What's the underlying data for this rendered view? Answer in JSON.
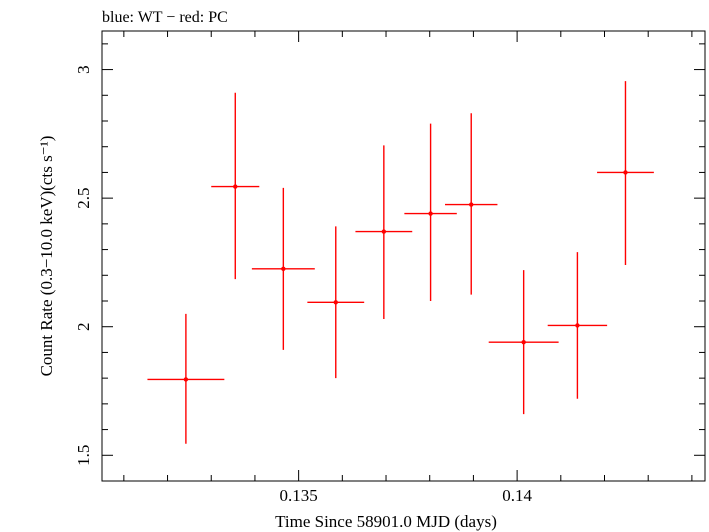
{
  "chart_data": {
    "type": "scatter",
    "title": "blue: WT − red: PC",
    "xlabel": "Time Since 58901.0 MJD (days)",
    "ylabel": "Count Rate (0.3−10.0 keV)(cts s⁻¹)",
    "xlim": [
      0.1305,
      0.1443
    ],
    "ylim": [
      1.4,
      3.15
    ],
    "x_ticks": [
      0.135,
      0.14
    ],
    "x_tick_labels": [
      "0.135",
      "0.14"
    ],
    "y_ticks": [
      1.5,
      2,
      2.5,
      3
    ],
    "y_tick_labels": [
      "1.5",
      "2",
      "2.5",
      "3"
    ],
    "grid": false,
    "series": [
      {
        "color": "#ff0000",
        "points": [
          {
            "x": 0.13242,
            "xerr": 0.00088,
            "y": 1.795,
            "y_lo": 1.545,
            "y_hi": 2.05
          },
          {
            "x": 0.13355,
            "xerr": 0.00055,
            "y": 2.545,
            "y_lo": 2.185,
            "y_hi": 2.91
          },
          {
            "x": 0.13465,
            "xerr": 0.00072,
            "y": 2.225,
            "y_lo": 1.91,
            "y_hi": 2.54
          },
          {
            "x": 0.13585,
            "xerr": 0.00065,
            "y": 2.095,
            "y_lo": 1.8,
            "y_hi": 2.39
          },
          {
            "x": 0.13695,
            "xerr": 0.00065,
            "y": 2.37,
            "y_lo": 2.03,
            "y_hi": 2.705
          },
          {
            "x": 0.13802,
            "xerr": 0.0006,
            "y": 2.44,
            "y_lo": 2.1,
            "y_hi": 2.79
          },
          {
            "x": 0.13895,
            "xerr": 0.0006,
            "y": 2.475,
            "y_lo": 2.125,
            "y_hi": 2.83
          },
          {
            "x": 0.14015,
            "xerr": 0.0008,
            "y": 1.94,
            "y_lo": 1.66,
            "y_hi": 2.22
          },
          {
            "x": 0.14138,
            "xerr": 0.00068,
            "y": 2.005,
            "y_lo": 1.72,
            "y_hi": 2.29
          },
          {
            "x": 0.14248,
            "xerr": 0.00065,
            "y": 2.6,
            "y_lo": 2.24,
            "y_hi": 2.955
          }
        ]
      }
    ]
  }
}
